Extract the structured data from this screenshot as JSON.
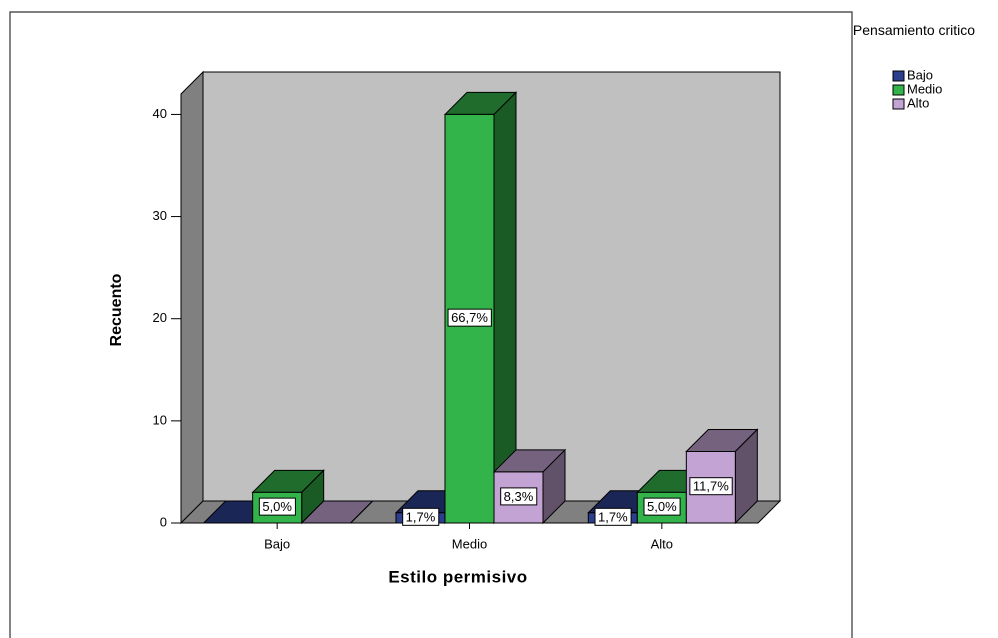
{
  "chart_data": {
    "type": "bar3d",
    "x_label": "Estilo permisivo",
    "y_label": "Recuento",
    "legend_title": "Pensamiento critico",
    "categories": [
      "Bajo",
      "Medio",
      "Alto"
    ],
    "series": [
      {
        "name": "Bajo",
        "color": "#2b3f8e",
        "values": [
          0,
          1,
          1
        ],
        "value_labels": [
          null,
          "1,7%",
          "1,7%"
        ]
      },
      {
        "name": "Medio",
        "color": "#33b44a",
        "values": [
          3,
          40,
          3
        ],
        "value_labels": [
          "5,0%",
          "66,7%",
          "5,0%"
        ]
      },
      {
        "name": "Alto",
        "color": "#c2a3d3",
        "values": [
          0,
          5,
          7
        ],
        "value_labels": [
          null,
          "8,3%",
          "11,7%"
        ]
      }
    ],
    "ylim": [
      0,
      42
    ],
    "yticks": [
      0,
      10,
      20,
      30,
      40
    ],
    "legend": "right"
  }
}
